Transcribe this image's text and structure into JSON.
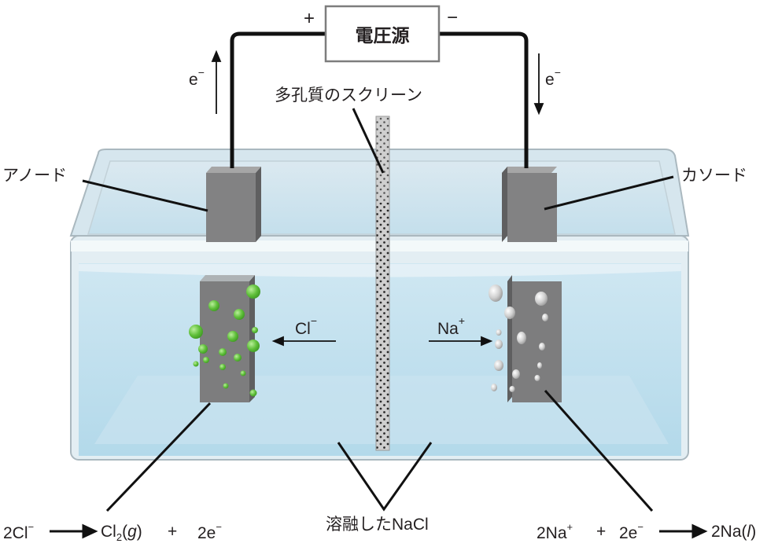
{
  "voltage_source": {
    "label": "電圧源",
    "plus": "+",
    "minus": "−"
  },
  "electron_left": "e",
  "electron_right": "e",
  "electron_charge": "−",
  "labels": {
    "screen": "多孔質のスクリーン",
    "anode": "アノード",
    "cathode": "カソード",
    "molten": "溶融したNaCl"
  },
  "ions": {
    "chloride": "Cl",
    "chloride_charge": "−",
    "sodium": "Na",
    "sodium_charge": "+"
  },
  "equations": {
    "anode_lhs": "2Cl",
    "anode_lhs_charge": "−",
    "anode_product": "Cl",
    "anode_product_sub": "2",
    "anode_state": "g",
    "anode_plus": "+",
    "anode_electrons": "2e",
    "anode_electrons_charge": "−",
    "cathode_lhs": "2Na",
    "cathode_lhs_charge": "+",
    "cathode_plus": "+",
    "cathode_electrons": "2e",
    "cathode_electrons_charge": "−",
    "cathode_product": "2Na",
    "cathode_state": "l"
  },
  "colors": {
    "water": "#bfe0ee",
    "glass_edge": "#b7c9d3",
    "electrode": "#7f7f80",
    "screen": "#c9c9c9",
    "chlorine_bubble": "#6cc04a",
    "sodium_bubble": "#c4c4c4",
    "wire": "#111111"
  }
}
